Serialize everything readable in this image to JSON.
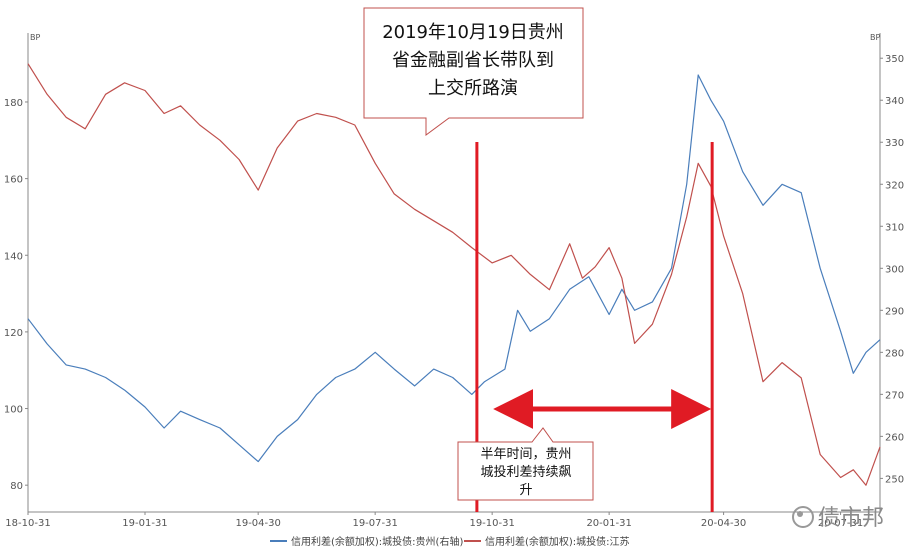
{
  "chart_data": {
    "type": "line",
    "x_start": "2018-10-31",
    "x_end": "2020-08-31",
    "x_ticks": [
      "18-10-31",
      "19-01-31",
      "19-04-30",
      "19-07-31",
      "19-10-31",
      "20-01-31",
      "20-04-30",
      "20-07-31"
    ],
    "y_left": {
      "unit": "BP",
      "ticks": [
        80,
        100,
        120,
        140,
        160,
        180
      ],
      "ylim": [
        73,
        198
      ]
    },
    "y_right": {
      "unit": "BP",
      "ticks": [
        250,
        260,
        270,
        280,
        290,
        300,
        310,
        320,
        330,
        340,
        350
      ],
      "ylim": [
        242,
        356
      ]
    },
    "series": [
      {
        "name": "信用利差(余额加权):城投债:贵州(右轴)",
        "axis": "right",
        "color": "#4a7ebb",
        "points": [
          [
            "2018-10-31",
            288
          ],
          [
            "2018-11-15",
            282
          ],
          [
            "2018-11-30",
            277
          ],
          [
            "2018-12-15",
            276
          ],
          [
            "2018-12-31",
            274
          ],
          [
            "2019-01-15",
            271
          ],
          [
            "2019-01-31",
            267
          ],
          [
            "2019-02-15",
            262
          ],
          [
            "2019-02-28",
            266
          ],
          [
            "2019-03-15",
            264
          ],
          [
            "2019-03-31",
            262
          ],
          [
            "2019-04-15",
            258
          ],
          [
            "2019-04-30",
            254
          ],
          [
            "2019-05-15",
            260
          ],
          [
            "2019-05-31",
            264
          ],
          [
            "2019-06-15",
            270
          ],
          [
            "2019-06-30",
            274
          ],
          [
            "2019-07-15",
            276
          ],
          [
            "2019-07-31",
            280
          ],
          [
            "2019-08-15",
            276
          ],
          [
            "2019-08-31",
            272
          ],
          [
            "2019-09-15",
            276
          ],
          [
            "2019-09-30",
            274
          ],
          [
            "2019-10-15",
            270
          ],
          [
            "2019-10-25",
            273
          ],
          [
            "2019-11-10",
            276
          ],
          [
            "2019-11-20",
            290
          ],
          [
            "2019-11-30",
            285
          ],
          [
            "2019-12-15",
            288
          ],
          [
            "2019-12-31",
            295
          ],
          [
            "2020-01-15",
            298
          ],
          [
            "2020-01-31",
            289
          ],
          [
            "2020-02-10",
            295
          ],
          [
            "2020-02-20",
            290
          ],
          [
            "2020-03-05",
            292
          ],
          [
            "2020-03-20",
            300
          ],
          [
            "2020-04-01",
            320
          ],
          [
            "2020-04-10",
            346
          ],
          [
            "2020-04-20",
            340
          ],
          [
            "2020-04-30",
            335
          ],
          [
            "2020-05-15",
            323
          ],
          [
            "2020-05-31",
            315
          ],
          [
            "2020-06-15",
            320
          ],
          [
            "2020-06-30",
            318
          ],
          [
            "2020-07-15",
            300
          ],
          [
            "2020-07-31",
            285
          ],
          [
            "2020-08-10",
            275
          ],
          [
            "2020-08-20",
            280
          ],
          [
            "2020-08-31",
            283
          ]
        ]
      },
      {
        "name": "信用利差(余额加权):城投债:江苏",
        "axis": "left",
        "color": "#c0504d",
        "points": [
          [
            "2018-10-31",
            190
          ],
          [
            "2018-11-15",
            182
          ],
          [
            "2018-11-30",
            176
          ],
          [
            "2018-12-15",
            173
          ],
          [
            "2018-12-31",
            182
          ],
          [
            "2019-01-15",
            185
          ],
          [
            "2019-01-31",
            183
          ],
          [
            "2019-02-15",
            177
          ],
          [
            "2019-02-28",
            179
          ],
          [
            "2019-03-15",
            174
          ],
          [
            "2019-03-31",
            170
          ],
          [
            "2019-04-15",
            165
          ],
          [
            "2019-04-30",
            157
          ],
          [
            "2019-05-15",
            168
          ],
          [
            "2019-05-31",
            175
          ],
          [
            "2019-06-15",
            177
          ],
          [
            "2019-06-30",
            176
          ],
          [
            "2019-07-15",
            174
          ],
          [
            "2019-07-31",
            164
          ],
          [
            "2019-08-15",
            156
          ],
          [
            "2019-08-31",
            152
          ],
          [
            "2019-09-15",
            149
          ],
          [
            "2019-09-30",
            146
          ],
          [
            "2019-10-15",
            142
          ],
          [
            "2019-10-31",
            138
          ],
          [
            "2019-11-15",
            140
          ],
          [
            "2019-11-30",
            135
          ],
          [
            "2019-12-15",
            131
          ],
          [
            "2019-12-31",
            143
          ],
          [
            "2020-01-10",
            134
          ],
          [
            "2020-01-20",
            137
          ],
          [
            "2020-01-31",
            142
          ],
          [
            "2020-02-10",
            134
          ],
          [
            "2020-02-20",
            117
          ],
          [
            "2020-03-05",
            122
          ],
          [
            "2020-03-20",
            135
          ],
          [
            "2020-04-01",
            150
          ],
          [
            "2020-04-10",
            164
          ],
          [
            "2020-04-20",
            158
          ],
          [
            "2020-04-30",
            145
          ],
          [
            "2020-05-15",
            130
          ],
          [
            "2020-05-31",
            107
          ],
          [
            "2020-06-15",
            112
          ],
          [
            "2020-06-30",
            108
          ],
          [
            "2020-07-15",
            88
          ],
          [
            "2020-07-31",
            82
          ],
          [
            "2020-08-10",
            84
          ],
          [
            "2020-08-20",
            80
          ],
          [
            "2020-08-31",
            90
          ]
        ]
      }
    ],
    "annotations": [
      {
        "type": "vline",
        "x": "2019-10-19",
        "color": "#e01b24"
      },
      {
        "type": "vline",
        "x": "2020-04-21",
        "color": "#e01b24"
      },
      {
        "type": "arrow",
        "from": "2019-10-31",
        "to": "2020-04-21",
        "color": "#e01b24"
      }
    ],
    "callout_top": [
      "2019年10月19日贵州",
      "省金融副省长带队到",
      "上交所路演"
    ],
    "callout_bottom": [
      "半年时间，贵州",
      "城投利差持续飙",
      "升"
    ],
    "legend_placement": "bottom-center",
    "grid": false
  },
  "watermark": "债市邦"
}
